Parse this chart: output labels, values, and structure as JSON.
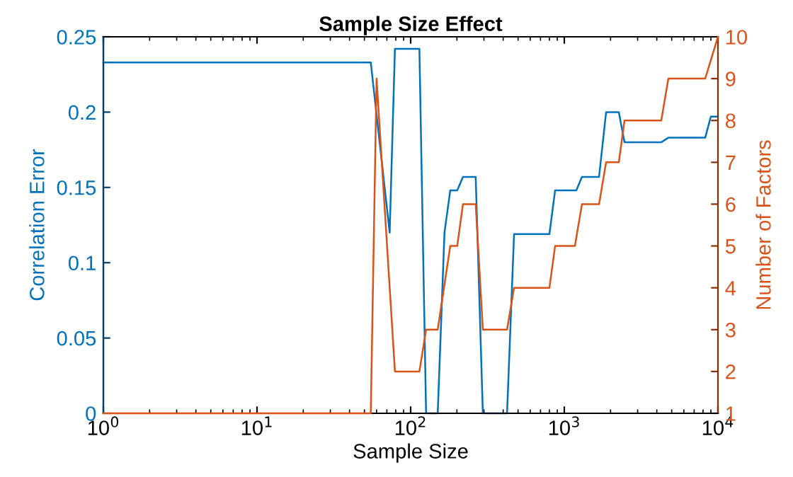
{
  "chart_data": {
    "type": "line",
    "title": "Sample Size Effect",
    "xlabel": "Sample Size",
    "ylabel": "Correlation Error",
    "y2label": "Number of Factors",
    "log": "x",
    "grid": false,
    "legend": false,
    "xlim": [
      1,
      10000
    ],
    "xticks": [
      {
        "value": 1,
        "label": "10$^{0}$"
      },
      {
        "value": 10,
        "label": "10$^{1}$"
      },
      {
        "value": 100,
        "label": "10$^{2}$"
      },
      {
        "value": 1000,
        "label": "10$^{3}$"
      },
      {
        "value": 10000,
        "label": "10$^{4}$"
      }
    ],
    "ylim": [
      0,
      0.25
    ],
    "yticks": [
      0,
      0.05,
      0.1,
      0.15,
      0.2,
      0.25
    ],
    "y2lim": [
      1,
      10
    ],
    "y2ticks": [
      1,
      2,
      3,
      4,
      5,
      6,
      7,
      8,
      9,
      10
    ],
    "series": [
      {
        "color": "#0072bd",
        "x": [
          1,
          55,
          73,
          79,
          114,
          126,
          150,
          166,
          181,
          201,
          219,
          265,
          295,
          424,
          471,
          800,
          871,
          1197,
          1303,
          1683,
          1871,
          2264,
          2465,
          4276,
          4755,
          8260,
          8990,
          10000
        ],
        "values": [
          0.233,
          0.233,
          0.12,
          0.242,
          0.242,
          0,
          0,
          0.12,
          0.148,
          0.148,
          0.157,
          0.157,
          0,
          0,
          0.119,
          0.119,
          0.148,
          0.148,
          0.157,
          0.157,
          0.2,
          0.2,
          0.18,
          0.18,
          0.183,
          0.183,
          0.197,
          0.197
        ]
      },
      {
        "color": "#d95319",
        "axis": "y2",
        "x": [
          1,
          55,
          60,
          79,
          114,
          126,
          150,
          181,
          201,
          219,
          265,
          295,
          424,
          471,
          800,
          871,
          1172,
          1303,
          1683,
          1871,
          2264,
          2465,
          4276,
          4755,
          8260,
          10000
        ],
        "values": [
          1,
          1,
          9,
          2,
          2,
          3,
          3,
          5,
          5,
          6,
          6,
          3,
          3,
          4,
          4,
          5,
          5,
          6,
          6,
          7,
          7,
          8,
          8,
          9,
          9,
          10
        ]
      }
    ]
  }
}
